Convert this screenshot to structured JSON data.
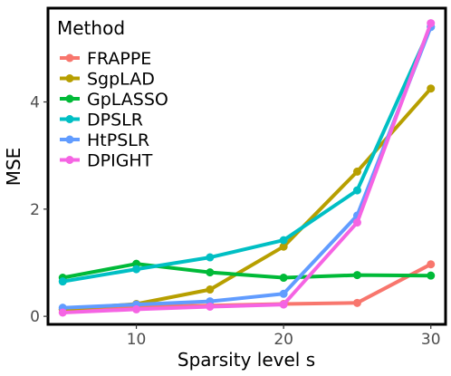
{
  "chart_data": {
    "type": "line",
    "xlabel": "Sparsity level s",
    "ylabel": "MSE",
    "x": [
      5,
      10,
      15,
      20,
      25,
      30
    ],
    "xlim": [
      4,
      31
    ],
    "ylim": [
      -0.15,
      5.75
    ],
    "xticks": [
      10,
      20,
      30
    ],
    "yticks": [
      0,
      2,
      4
    ],
    "grid": false,
    "legend": {
      "title": "Method",
      "position": "top-left"
    },
    "series": [
      {
        "name": "FRAPPE",
        "color": "#F8766D",
        "values": [
          0.13,
          0.18,
          0.2,
          0.23,
          0.25,
          0.97
        ]
      },
      {
        "name": "SgpLAD",
        "color": "#B79F00",
        "values": [
          0.13,
          0.23,
          0.5,
          1.3,
          2.7,
          4.25
        ]
      },
      {
        "name": "GpLASSO",
        "color": "#00BA38",
        "values": [
          0.72,
          0.98,
          0.82,
          0.72,
          0.77,
          0.76
        ]
      },
      {
        "name": "DPSLR",
        "color": "#00BFC4",
        "values": [
          0.65,
          0.88,
          1.1,
          1.42,
          2.35,
          5.4
        ]
      },
      {
        "name": "HtPSLR",
        "color": "#619CFF",
        "values": [
          0.16,
          0.22,
          0.28,
          0.42,
          1.88,
          5.4
        ]
      },
      {
        "name": "DPIGHT",
        "color": "#F564E3",
        "values": [
          0.07,
          0.13,
          0.18,
          0.22,
          1.75,
          5.47
        ]
      }
    ]
  }
}
